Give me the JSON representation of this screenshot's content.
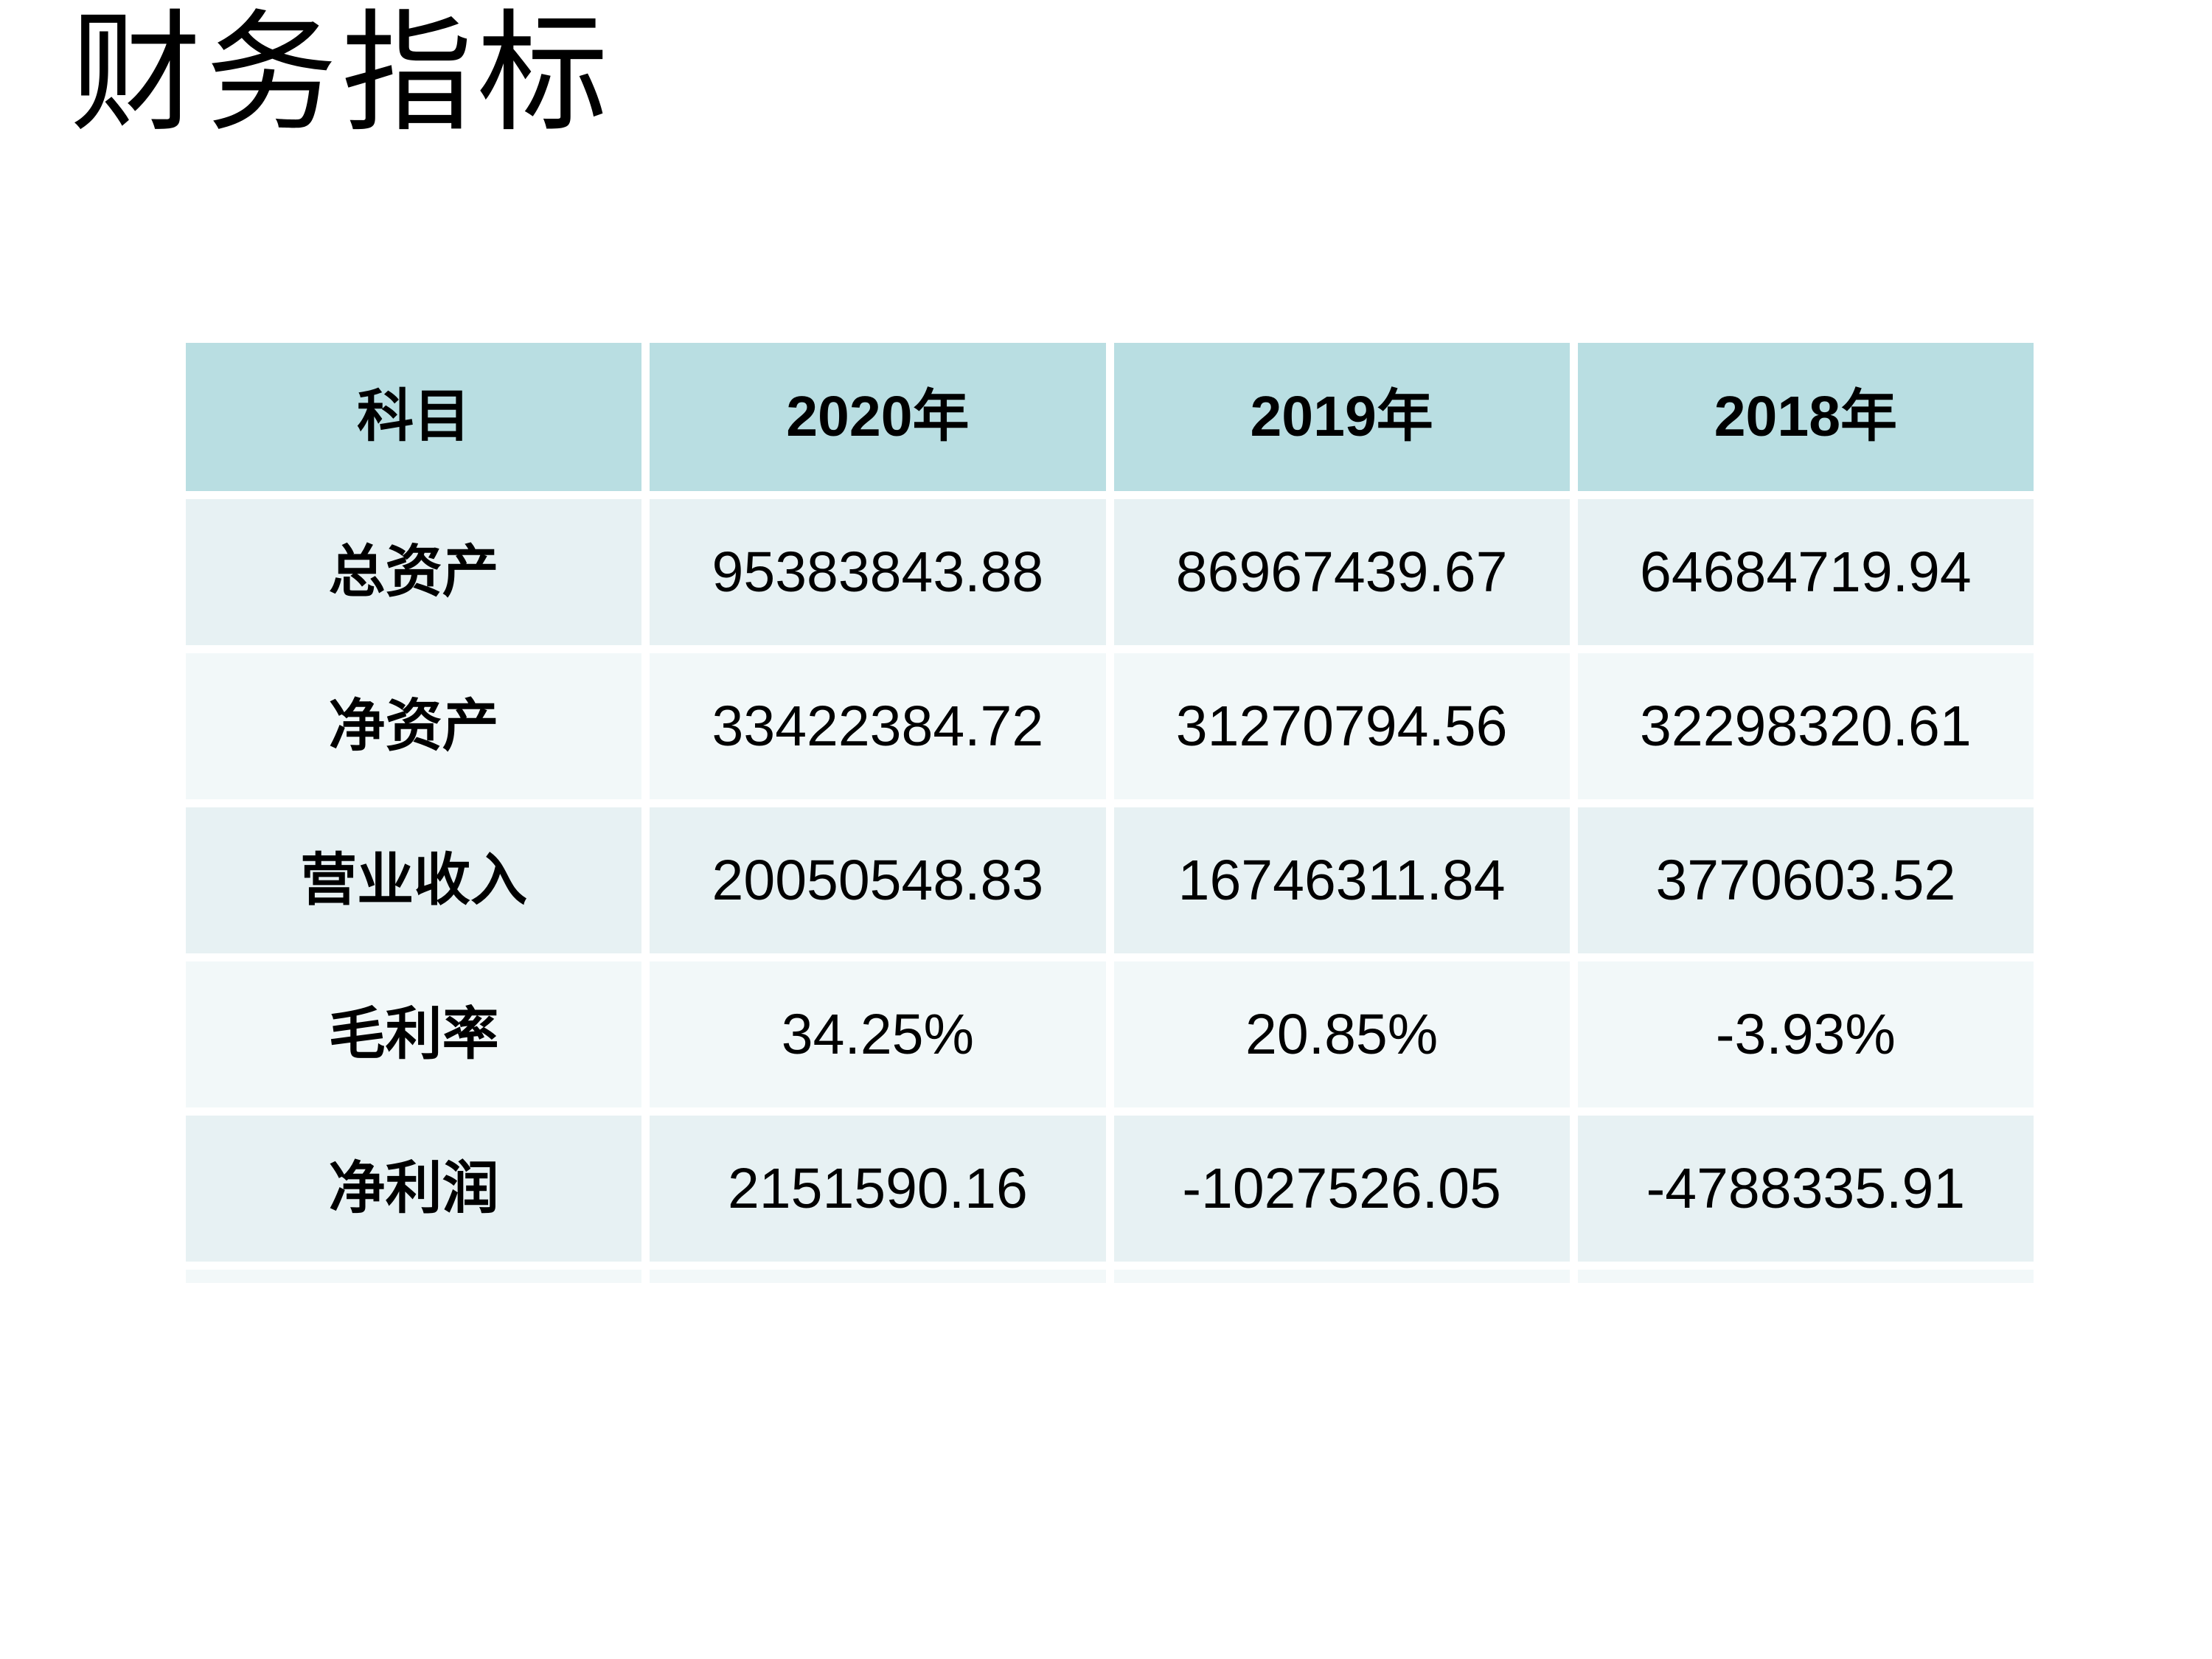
{
  "page": {
    "title": "财务指标"
  },
  "table": {
    "columns": [
      "科目",
      "2020年",
      "2019年",
      "2018年"
    ],
    "rows": [
      {
        "label": "总资产",
        "values": [
          "95383843.88",
          "86967439.67",
          "64684719.94"
        ]
      },
      {
        "label": "净资产",
        "values": [
          "33422384.72",
          "31270794.56",
          "32298320.61"
        ]
      },
      {
        "label": "营业收入",
        "values": [
          "20050548.83",
          "16746311.84",
          "3770603.52"
        ]
      },
      {
        "label": "毛利率",
        "values": [
          "34.25%",
          "20.85%",
          "-3.93%"
        ]
      },
      {
        "label": "净利润",
        "values": [
          "2151590.16",
          "-1027526.05",
          "-4788335.91"
        ]
      }
    ]
  },
  "colors": {
    "header_bg": "#b9dee2",
    "row_band_dark": "#e7f1f3",
    "row_band_light": "#f2f8f9",
    "text": "#000000",
    "background": "#ffffff"
  },
  "chart_data": {
    "type": "table",
    "title": "财务指标",
    "columns": [
      "科目",
      "2020年",
      "2019年",
      "2018年"
    ],
    "rows": [
      [
        "总资产",
        95383843.88,
        86967439.67,
        64684719.94
      ],
      [
        "净资产",
        33422384.72,
        31270794.56,
        32298320.61
      ],
      [
        "营业收入",
        20050548.83,
        16746311.84,
        3770603.52
      ],
      [
        "毛利率",
        "34.25%",
        "20.85%",
        "-3.93%"
      ],
      [
        "净利润",
        2151590.16,
        -1027526.05,
        -4788335.91
      ]
    ]
  }
}
